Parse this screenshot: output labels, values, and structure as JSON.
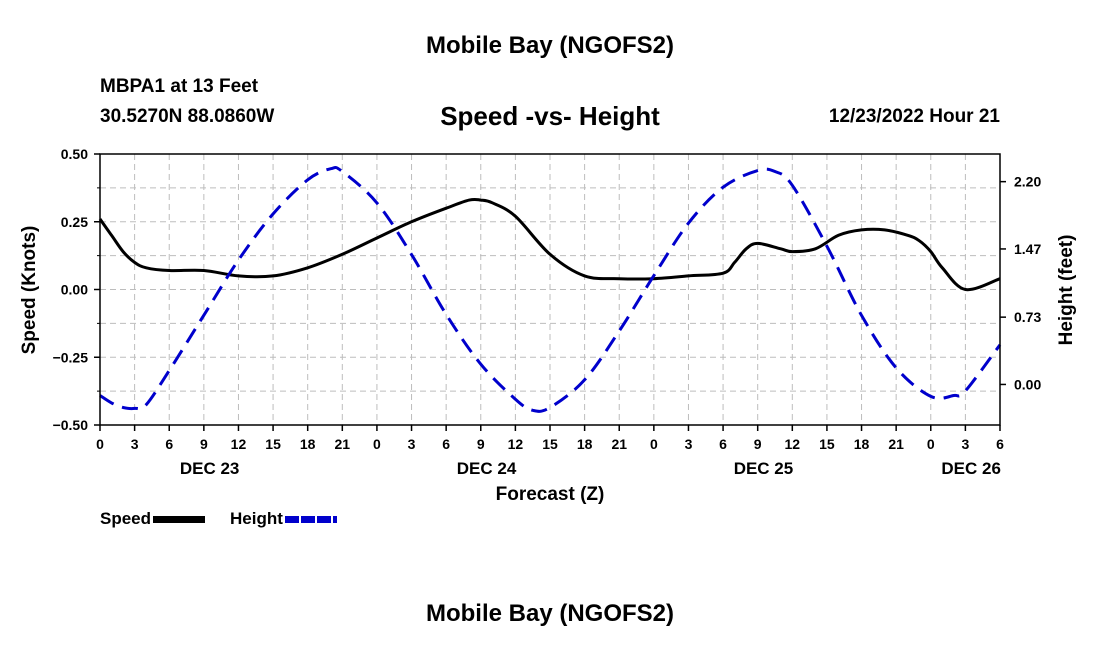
{
  "header": {
    "title": "Mobile Bay (NGOFS2)",
    "station": "MBPA1 at 13 Feet",
    "coords": "30.5270N  88.0860W",
    "subtitle": "Speed -vs- Height",
    "timestamp": "12/23/2022 Hour 21"
  },
  "footer": {
    "title": "Mobile Bay (NGOFS2)"
  },
  "legend": {
    "speed_label": "Speed",
    "height_label": "Height"
  },
  "chart_data": {
    "type": "line",
    "xlabel": "Forecast (Z)",
    "ylabel_left": "Speed (Knots)",
    "ylabel_right": "Height (feet)",
    "x_unit": "hours since 00Z Dec 23",
    "xlim": [
      0,
      78
    ],
    "ylim_left": [
      -0.5,
      0.5
    ],
    "ylim_right": [
      -0.44,
      2.5
    ],
    "grid": true,
    "x_tick_hours": [
      0,
      3,
      6,
      9,
      12,
      15,
      18,
      21,
      24,
      27,
      30,
      33,
      36,
      39,
      42,
      45,
      48,
      51,
      54,
      57,
      60,
      63,
      66,
      69,
      72,
      75,
      78
    ],
    "x_tick_labels": [
      "0",
      "3",
      "6",
      "9",
      "12",
      "15",
      "18",
      "21",
      "0",
      "3",
      "6",
      "9",
      "12",
      "15",
      "18",
      "21",
      "0",
      "3",
      "6",
      "9",
      "12",
      "15",
      "18",
      "21",
      "0",
      "3",
      "6"
    ],
    "date_labels": [
      {
        "label": "DEC 23",
        "hour": 9.5
      },
      {
        "label": "DEC 24",
        "hour": 33.5
      },
      {
        "label": "DEC 25",
        "hour": 57.5
      },
      {
        "label": "DEC 26",
        "hour": 75.5
      }
    ],
    "y_left_ticks": [
      -0.5,
      -0.25,
      0.0,
      0.25,
      0.5
    ],
    "y_left_tick_labels": [
      "−0.50",
      "−0.25",
      "0.00",
      "0.25",
      "0.50"
    ],
    "y_right_ticks": [
      0.0,
      0.73,
      1.47,
      2.2
    ],
    "y_right_tick_labels": [
      "0.00",
      "0.73",
      "1.47",
      "2.20"
    ],
    "series": [
      {
        "name": "Speed",
        "axis": "left",
        "color": "#000000",
        "style": "solid",
        "x": [
          0,
          1,
          2,
          3,
          4,
          6,
          9,
          12,
          15,
          18,
          21,
          24,
          27,
          30,
          32,
          33,
          34,
          36,
          39,
          42,
          45,
          48,
          51,
          54,
          55,
          56,
          57,
          59,
          60,
          62,
          64,
          66,
          68,
          70,
          71,
          72,
          73,
          75,
          78
        ],
        "values": [
          0.26,
          0.2,
          0.14,
          0.1,
          0.08,
          0.07,
          0.07,
          0.05,
          0.05,
          0.08,
          0.13,
          0.19,
          0.25,
          0.3,
          0.33,
          0.33,
          0.32,
          0.27,
          0.13,
          0.05,
          0.04,
          0.04,
          0.05,
          0.06,
          0.1,
          0.15,
          0.17,
          0.15,
          0.14,
          0.15,
          0.2,
          0.22,
          0.22,
          0.2,
          0.18,
          0.14,
          0.08,
          0.0,
          0.04
        ]
      },
      {
        "name": "Height",
        "axis": "right",
        "color": "#0000cc",
        "style": "dashed",
        "x": [
          0,
          1,
          2,
          3,
          4,
          6,
          9,
          12,
          15,
          18,
          20,
          21,
          24,
          27,
          30,
          33,
          36,
          37.5,
          39,
          42,
          45,
          48,
          51,
          54,
          57,
          58.5,
          60,
          63,
          66,
          69,
          72,
          74,
          75,
          78
        ],
        "values": [
          -0.12,
          -0.2,
          -0.25,
          -0.26,
          -0.22,
          0.15,
          0.75,
          1.35,
          1.85,
          2.22,
          2.34,
          2.31,
          1.97,
          1.41,
          0.76,
          0.22,
          -0.16,
          -0.28,
          -0.25,
          0.05,
          0.58,
          1.18,
          1.75,
          2.14,
          2.32,
          2.31,
          2.16,
          1.5,
          0.75,
          0.18,
          -0.13,
          -0.12,
          -0.07,
          0.43
        ]
      }
    ]
  }
}
